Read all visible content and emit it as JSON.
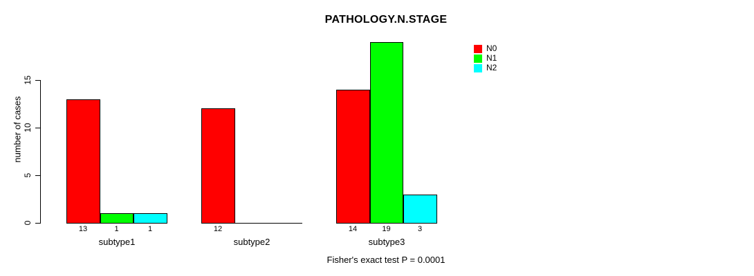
{
  "chart_data": {
    "type": "bar",
    "title": "PATHOLOGY.N.STAGE",
    "ylabel": "number of cases",
    "xlabel": "",
    "categories": [
      "subtype1",
      "subtype2",
      "subtype3"
    ],
    "series": [
      {
        "name": "N0",
        "color": "#ff0000",
        "values": [
          13,
          12,
          14
        ]
      },
      {
        "name": "N1",
        "color": "#00ff00",
        "values": [
          1,
          0,
          19
        ]
      },
      {
        "name": "N2",
        "color": "#00ffff",
        "values": [
          1,
          0,
          3
        ]
      }
    ],
    "ylim": [
      0,
      15
    ],
    "yticks": [
      0,
      5,
      10,
      15
    ],
    "grid": false,
    "legend_position": "top-right",
    "bar_value_labels": [
      [
        13,
        1,
        1
      ],
      [
        12,
        null,
        null
      ],
      [
        14,
        19,
        3
      ]
    ],
    "annotation": "Fisher's exact test P = 0.0001"
  },
  "colors": {
    "background": "#ffffff",
    "axis": "#000000",
    "text": "#000000"
  }
}
